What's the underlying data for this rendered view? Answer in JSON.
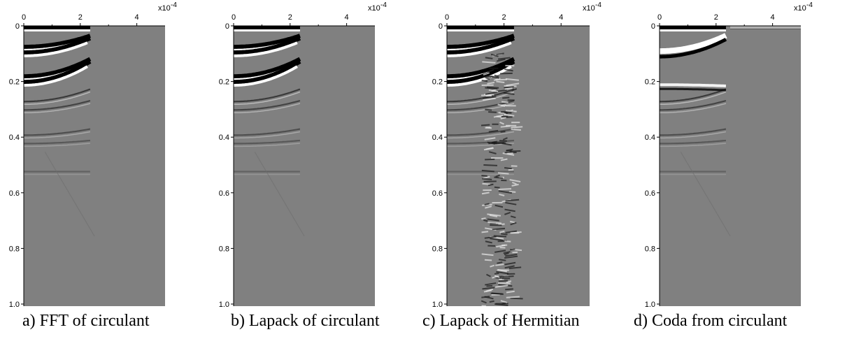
{
  "figure": {
    "panels": [
      {
        "caption": "a) FFT of circulant",
        "variant": "fft"
      },
      {
        "caption": "b) Lapack of circulant",
        "variant": "lapack"
      },
      {
        "caption": "c) Lapack of Hermitian",
        "variant": "hermitian"
      },
      {
        "caption": "d) Coda from circulant",
        "variant": "coda"
      }
    ],
    "x_ticks": [
      "0",
      "2",
      "4"
    ],
    "x_multiplier": "x10",
    "x_multiplier_exp": "-4",
    "y_ticks": [
      "0",
      "0.2",
      "0.4",
      "0.6",
      "0.8",
      "1.0"
    ],
    "colors": {
      "background": "#808080",
      "positive": "#ffffff",
      "negative": "#000000"
    }
  }
}
